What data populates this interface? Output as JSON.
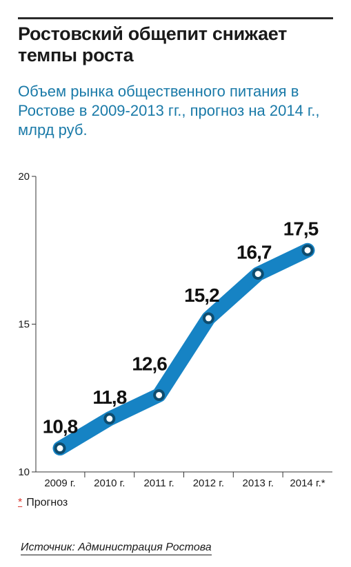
{
  "header": {
    "title": "Ростовский общепит снижает темпы роста",
    "subtitle": "Объем рынка общественного питания в Ростове в 2009-2013 гг., прогноз на 2014 г., млрд руб."
  },
  "chart_data": {
    "type": "line",
    "categories": [
      "2009 г.",
      "2010 г.",
      "2011 г.",
      "2012 г.",
      "2013 г.",
      "2014 г.*"
    ],
    "values": [
      10.8,
      11.8,
      12.6,
      15.2,
      16.7,
      17.5
    ],
    "data_labels": [
      "10,8",
      "11,8",
      "12,6",
      "15,2",
      "16,7",
      "17,5"
    ],
    "yticks": [
      10,
      15,
      20
    ],
    "ylim": [
      10,
      20
    ],
    "grid": false,
    "line_color": "#1683c4",
    "marker_color": "#0e4c6e"
  },
  "footnote": {
    "marker": "*",
    "text": "Прогноз"
  },
  "source": "Источник: Администрация Ростова"
}
